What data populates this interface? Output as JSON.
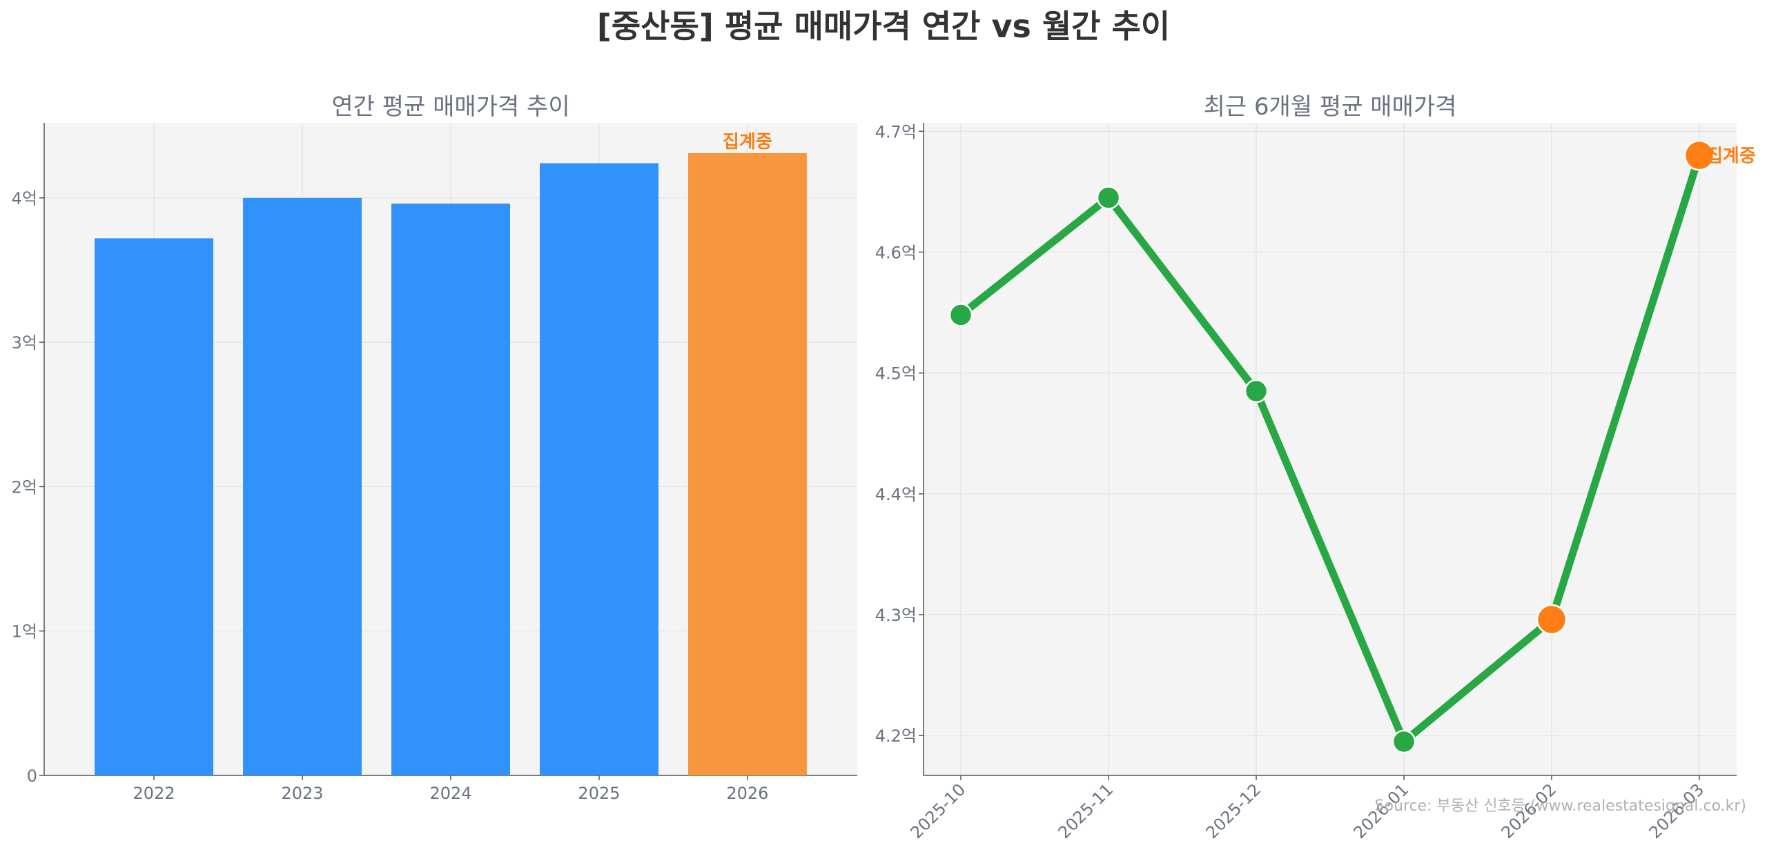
{
  "title": "[중산동] 평균 매매가격 연간 vs 월간 추이",
  "source": "Source: 부동산 신호등 (www.realestatesignal.co.kr)",
  "colors": {
    "bar": "#3192fb",
    "bar_partial": "#f8963f",
    "line": "#28a745",
    "partial_marker": "#fd7e14",
    "partial_label": "#fd7e14",
    "panel_bg": "#f4f4f4"
  },
  "chart_data": [
    {
      "type": "bar",
      "title": "연간 평균 매매가격 추이",
      "categories": [
        "2022",
        "2023",
        "2024",
        "2025",
        "2026"
      ],
      "values": [
        3.72,
        4.0,
        3.96,
        4.24,
        4.31
      ],
      "unit": "억",
      "ylim": [
        0,
        4.52
      ],
      "yticks": [
        {
          "value": 0,
          "label": "0"
        },
        {
          "value": 1,
          "label": "1억"
        },
        {
          "value": 2,
          "label": "2억"
        },
        {
          "value": 3,
          "label": "3억"
        },
        {
          "value": 4,
          "label": "4억"
        }
      ],
      "partial_index": 4,
      "partial_label": "집계중",
      "grid": true
    },
    {
      "type": "line",
      "title": "최근 6개월 평균 매매가격",
      "x": [
        "2025-10",
        "2025-11",
        "2025-12",
        "2026-01",
        "2026-02",
        "2026-03"
      ],
      "values": [
        4.548,
        4.645,
        4.485,
        4.195,
        4.296,
        4.68
      ],
      "unit": "억",
      "ylim": [
        4.167,
        4.707
      ],
      "yticks": [
        {
          "value": 4.2,
          "label": "4.2억"
        },
        {
          "value": 4.3,
          "label": "4.3억"
        },
        {
          "value": 4.4,
          "label": "4.4억"
        },
        {
          "value": 4.5,
          "label": "4.5억"
        },
        {
          "value": 4.6,
          "label": "4.6억"
        },
        {
          "value": 4.7,
          "label": "4.7억"
        }
      ],
      "partial_indices": [
        4,
        5
      ],
      "partial_label": "집계중",
      "grid": true
    }
  ]
}
